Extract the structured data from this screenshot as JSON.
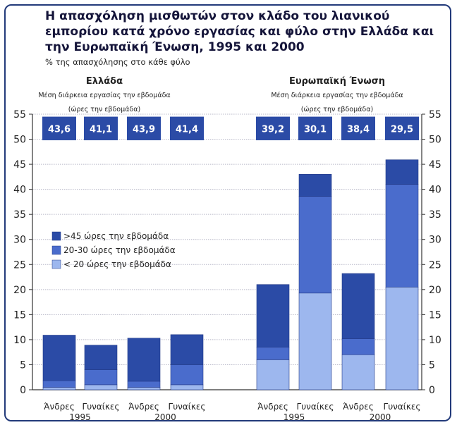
{
  "header": {
    "title": "Η απασχόληση μισθωτών στον κλάδο του λιανικού εμπορίου κατά χρόνο εργασίας και φύλο στην Ελλάδα και την Ευρωπαϊκή Ένωση, 1995 και 2000",
    "subtitle": "% της απασχόλησης στο κάθε φύλο"
  },
  "colors": {
    "frame": "#223a7a",
    "over45": "#2b4ba6",
    "h20to30": "#4a6ccc",
    "under20": "#9db7ee",
    "avg_box": "#2b4ba6",
    "avg_text": "#ffffff"
  },
  "chart_data": {
    "type": "bar",
    "stacked": true,
    "ylim": [
      0,
      55
    ],
    "yticks": [
      0,
      5,
      10,
      15,
      20,
      25,
      30,
      35,
      40,
      45,
      50,
      55
    ],
    "grid": true,
    "legend_position": "left",
    "legend": [
      ">45 ώρες την εβδομάδα",
      "20-30 ώρες την εβδομάδα",
      "< 20 ώρες την εβδομάδα"
    ],
    "panels": [
      {
        "title": "Ελλάδα",
        "avg_label_line1": "Μέση διάρκεια εργασίας την εβδομάδα",
        "avg_label_line2": "(ώρες την εβδομάδα)",
        "bars": [
          {
            "sex": "Άνδρες",
            "year": "1995",
            "avg_hours": "43,6",
            "under20": 0.5,
            "h20to30": 1.3,
            "over45": 9.1
          },
          {
            "sex": "Γυναίκες",
            "year": "1995",
            "avg_hours": "41,1",
            "under20": 1.0,
            "h20to30": 3.0,
            "over45": 4.9
          },
          {
            "sex": "Άνδρες",
            "year": "2000",
            "avg_hours": "43,9",
            "under20": 0.5,
            "h20to30": 1.2,
            "over45": 8.6
          },
          {
            "sex": "Γυναίκες",
            "year": "2000",
            "avg_hours": "41,4",
            "under20": 1.0,
            "h20to30": 4.0,
            "over45": 6.0
          }
        ]
      },
      {
        "title": "Ευρωπαϊκή Ένωση",
        "avg_label_line1": "Μέση διάρκεια εργασίας την εβδομάδα",
        "avg_label_line2": "(ώρες την εβδομάδα)",
        "bars": [
          {
            "sex": "Άνδρες",
            "year": "1995",
            "avg_hours": "39,2",
            "under20": 6.0,
            "h20to30": 2.5,
            "over45": 12.5
          },
          {
            "sex": "Γυναίκες",
            "year": "1995",
            "avg_hours": "30,1",
            "under20": 19.3,
            "h20to30": 19.3,
            "over45": 4.4
          },
          {
            "sex": "Άνδρες",
            "year": "2000",
            "avg_hours": "38,4",
            "under20": 7.0,
            "h20to30": 3.2,
            "over45": 13.0
          },
          {
            "sex": "Γυναίκες",
            "year": "2000",
            "avg_hours": "29,5",
            "under20": 20.5,
            "h20to30": 20.5,
            "over45": 4.9
          }
        ]
      }
    ]
  }
}
